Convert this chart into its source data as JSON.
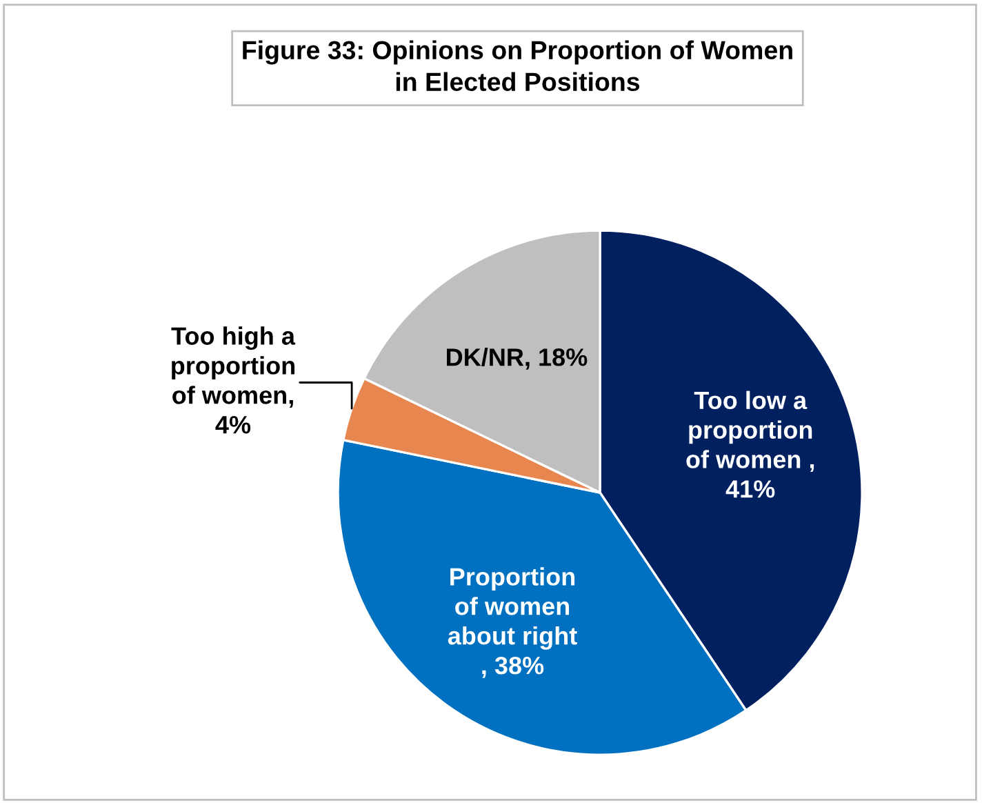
{
  "chart_data": {
    "type": "pie",
    "title": "Figure 33: Opinions on Proportion of Women in Elected Positions",
    "categories": [
      "Too low a proportion of women , 41%",
      "Proportion of women about right , 38%",
      "Too high a proportion of women, 4%",
      "DK/NR, 18%"
    ],
    "values": [
      41,
      38,
      4,
      18
    ],
    "colors": [
      "#002060",
      "#0070c0",
      "#e8864f",
      "#bfbfbf"
    ]
  }
}
